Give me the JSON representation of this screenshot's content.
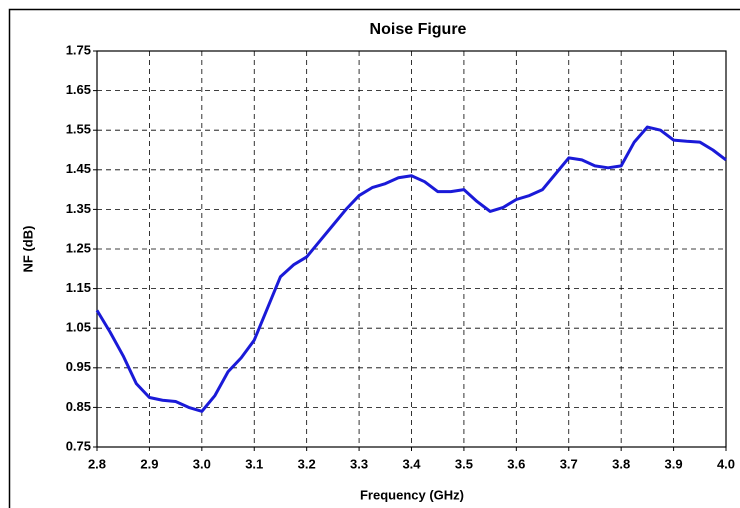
{
  "chart_data": {
    "type": "line",
    "title": "Noise Figure",
    "xlabel": "Frequency (GHz)",
    "ylabel": "NF (dB)",
    "x": [
      2.8,
      2.825,
      2.85,
      2.875,
      2.9,
      2.925,
      2.95,
      2.975,
      3.0,
      3.025,
      3.05,
      3.075,
      3.1,
      3.125,
      3.15,
      3.175,
      3.2,
      3.225,
      3.25,
      3.275,
      3.3,
      3.325,
      3.35,
      3.375,
      3.4,
      3.425,
      3.45,
      3.475,
      3.5,
      3.525,
      3.55,
      3.575,
      3.6,
      3.625,
      3.65,
      3.675,
      3.7,
      3.725,
      3.75,
      3.775,
      3.8,
      3.825,
      3.85,
      3.875,
      3.9,
      3.925,
      3.95,
      3.975,
      4.0
    ],
    "series": [
      {
        "name": "NF",
        "color": "#1a1ad8",
        "values": [
          1.095,
          1.04,
          0.98,
          0.91,
          0.875,
          0.868,
          0.865,
          0.85,
          0.84,
          0.88,
          0.94,
          0.975,
          1.02,
          1.1,
          1.18,
          1.21,
          1.23,
          1.27,
          1.31,
          1.35,
          1.385,
          1.405,
          1.415,
          1.43,
          1.435,
          1.42,
          1.395,
          1.395,
          1.4,
          1.37,
          1.345,
          1.355,
          1.375,
          1.385,
          1.4,
          1.44,
          1.48,
          1.475,
          1.46,
          1.455,
          1.46,
          1.52,
          1.558,
          1.55,
          1.525,
          1.522,
          1.52,
          1.5,
          1.475
        ]
      }
    ],
    "xlim": [
      2.8,
      4.0
    ],
    "ylim": [
      0.75,
      1.75
    ],
    "xticks": [
      2.8,
      2.9,
      {
        "value": 3,
        "label": "3.0"
      },
      3.1,
      3.2,
      3.3,
      3.4,
      3.5,
      3.6,
      3.7,
      3.8,
      3.9,
      {
        "value": 4,
        "label": "4.0"
      }
    ],
    "yticks": [
      0.75,
      0.85,
      0.95,
      1.05,
      1.15,
      1.25,
      1.35,
      1.45,
      1.55,
      1.65,
      1.75
    ],
    "grid": true
  }
}
